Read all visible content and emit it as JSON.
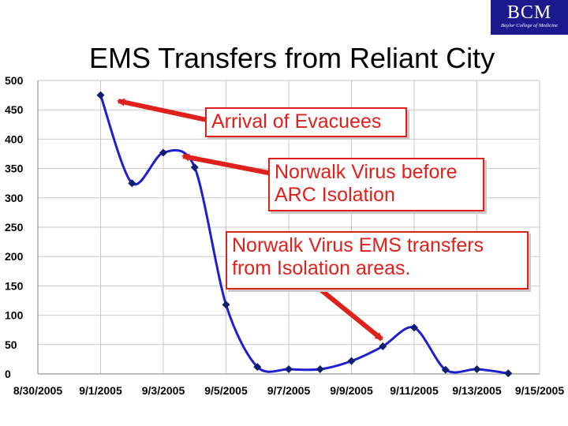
{
  "logo": {
    "text": "BCM",
    "subtitle": "Baylor College of Medicine"
  },
  "title": "EMS Transfers from Reliant City",
  "colors": {
    "line": "#1f1fd0",
    "marker": "#0d1f6e",
    "callout": "#e0201b",
    "grid": "#c8c8c8",
    "logo_bg": "#1a1a8c"
  },
  "callouts": [
    "Arrival of Evacuees",
    "Norwalk Virus before ARC Isolation",
    "Norwalk Virus EMS transfers from Isolation areas."
  ],
  "chart_data": {
    "type": "line",
    "title": "",
    "xlabel": "",
    "ylabel": "",
    "x_tick_labels": [
      "8/30/2005",
      "9/1/2005",
      "9/3/2005",
      "9/5/2005",
      "9/7/2005",
      "9/9/2005",
      "9/11/2005",
      "9/13/2005",
      "9/15/2005"
    ],
    "y_tick_labels": [
      "0",
      "50",
      "100",
      "150",
      "200",
      "250",
      "300",
      "350",
      "400",
      "450",
      "500"
    ],
    "xlim": [
      "2005-08-30",
      "2005-09-15"
    ],
    "ylim": [
      0,
      500
    ],
    "grid": true,
    "legend": "none",
    "series": [
      {
        "x": [
          "2005-09-01",
          "2005-09-02",
          "2005-09-03",
          "2005-09-04",
          "2005-09-05",
          "2005-09-06",
          "2005-09-07",
          "2005-09-08",
          "2005-09-09",
          "2005-09-10",
          "2005-09-11",
          "2005-09-12",
          "2005-09-13",
          "2005-09-14"
        ],
        "y": [
          475,
          325,
          377,
          352,
          118,
          12,
          8,
          8,
          22,
          47,
          79,
          7,
          8,
          1
        ]
      }
    ]
  }
}
